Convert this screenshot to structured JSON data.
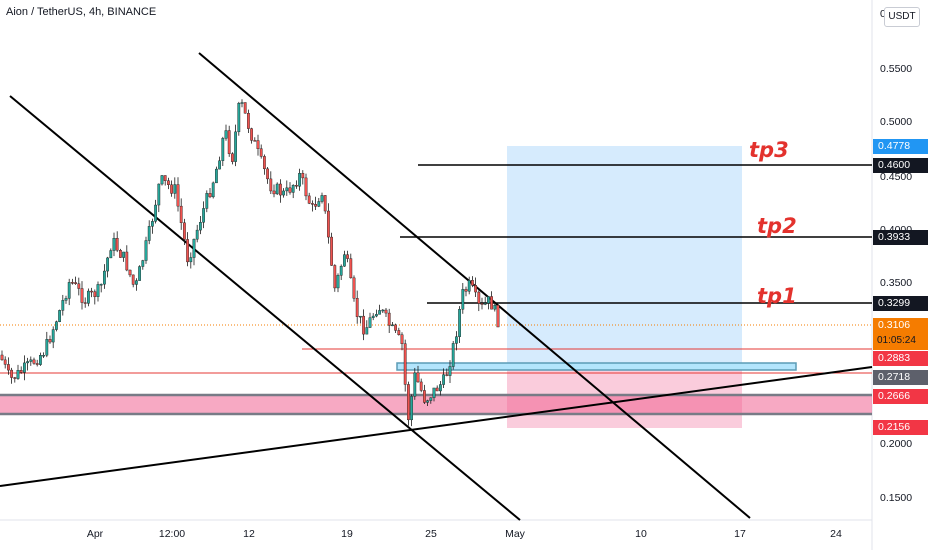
{
  "header": {
    "symbol": "Aion / TetherUS, 4h, BINANCE",
    "currency": "USDT",
    "top_tick": "0"
  },
  "y_axis_ticks": [
    "0.5500",
    "0.5000",
    "0.4500",
    "0.4000",
    "0.3500",
    "0.2000",
    "0.1500"
  ],
  "x_axis_ticks": [
    "Apr",
    "12:00",
    "12",
    "19",
    "25",
    "May",
    "10",
    "17",
    "24"
  ],
  "price_tags": [
    {
      "value": "0.4778",
      "color": "#2196f3"
    },
    {
      "value": "0.4600",
      "color": "#131722"
    },
    {
      "value": "0.3933",
      "color": "#131722"
    },
    {
      "value": "0.3299",
      "color": "#131722"
    },
    {
      "value": "0.3106",
      "color": "#f57c00"
    },
    {
      "value": "0.2883",
      "color": "#f23645"
    },
    {
      "value": "0.2718",
      "color": "#5d606b"
    },
    {
      "value": "0.2666",
      "color": "#f23645"
    },
    {
      "value": "0.2156",
      "color": "#f23645"
    }
  ],
  "countdown": "01:05:24",
  "targets": {
    "tp1": "tp1",
    "tp2": "tp2",
    "tp3": "tp3"
  },
  "colors": {
    "up": "#26a69a",
    "down": "#ef5350",
    "profit_zone": "#bbdefb",
    "loss_zone": "#f8bbd0"
  }
}
